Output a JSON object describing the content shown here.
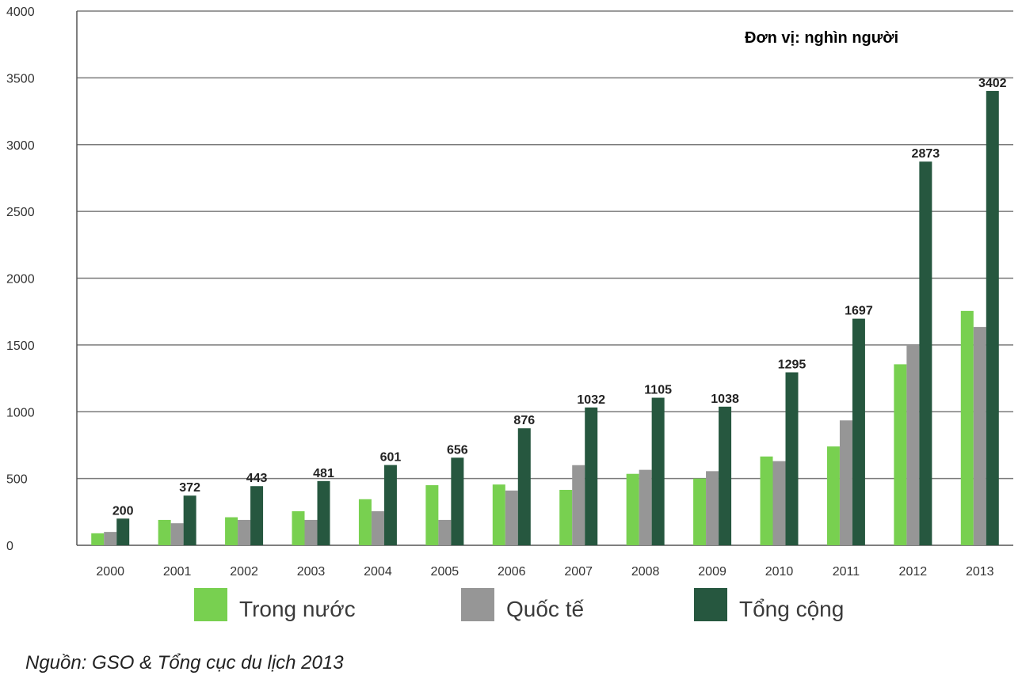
{
  "chart_data": {
    "type": "bar",
    "unit_note": "Đơn vị: nghìn người",
    "categories": [
      "2000",
      "2001",
      "2002",
      "2003",
      "2004",
      "2005",
      "2006",
      "2007",
      "2008",
      "2009",
      "2010",
      "2011",
      "2012",
      "2013"
    ],
    "series": [
      {
        "name": "Trong nước",
        "color": "#78d050",
        "values": [
          90,
          190,
          210,
          255,
          345,
          450,
          455,
          415,
          535,
          500,
          665,
          740,
          1355,
          1755
        ]
      },
      {
        "name": "Quốc tế",
        "color": "#969696",
        "values": [
          100,
          165,
          190,
          190,
          255,
          190,
          410,
          600,
          565,
          555,
          630,
          935,
          1500,
          1635
        ]
      },
      {
        "name": "Tổng cộng",
        "color": "#26573f",
        "values": [
          200,
          372,
          443,
          481,
          601,
          656,
          876,
          1032,
          1105,
          1038,
          1295,
          1697,
          2873,
          3402
        ]
      }
    ],
    "data_labels_series": "Tổng cộng",
    "yticks": [
      0,
      500,
      1000,
      1500,
      2000,
      2500,
      3000,
      3500,
      4000
    ],
    "ylim": [
      0,
      4000
    ],
    "grid": true,
    "legend_position": "bottom"
  },
  "source_text": "Nguồn: GSO & Tổng cục du lịch 2013"
}
